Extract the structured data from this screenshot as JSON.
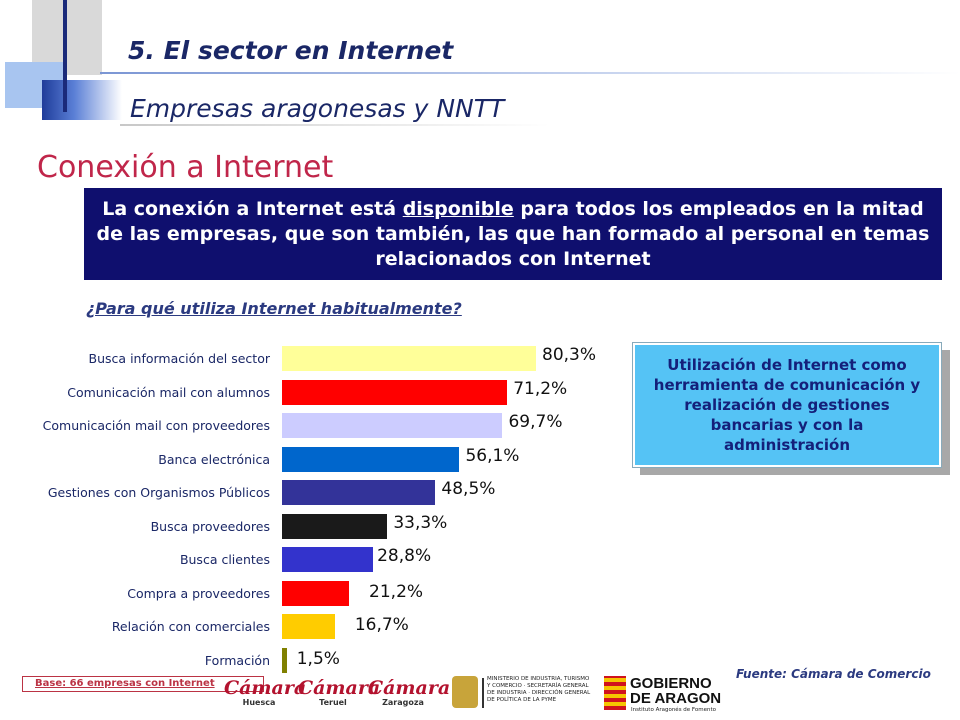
{
  "header": {
    "section_title": "5. El sector en Internet",
    "section_subtitle": "Empresas aragonesas y NNTT"
  },
  "page_title": "Conexión a Internet",
  "banner": {
    "text_before": "La conexión a Internet está ",
    "underlined": "disponible",
    "text_after": " para todos los empleados en la mitad de las empresas, que son también, las que han formado al personal en temas relacionados con Internet"
  },
  "question": "¿Para qué utiliza Internet habitualmente?",
  "chart_data": {
    "type": "bar",
    "orientation": "horizontal",
    "categories": [
      "Busca información del sector",
      "Comunicación mail con alumnos",
      "Comunicación mail con proveedores",
      "Banca electrónica",
      "Gestiones con Organismos Públicos",
      "Busca proveedores",
      "Busca clientes",
      "Compra a proveedores",
      "Relación con comerciales",
      "Formación"
    ],
    "values": [
      80.3,
      71.2,
      69.7,
      56.1,
      48.5,
      33.3,
      28.8,
      21.2,
      16.7,
      1.5
    ],
    "value_labels": [
      "80,3%",
      "71,2%",
      "69,7%",
      "56,1%",
      "48,5%",
      "33,3%",
      "28,8%",
      "21,2%",
      "16,7%",
      "1,5%"
    ],
    "colors": [
      "#ffff99",
      "#ff0000",
      "#ccccff",
      "#0066cc",
      "#333399",
      "#1a1a1a",
      "#3333cc",
      "#ff0000",
      "#ffcc00",
      "#808000"
    ],
    "xlim": [
      0,
      100
    ],
    "grid": false
  },
  "callout": "Utilización de Internet como herramienta de comunicación y realización de gestiones bancarias y con la administración",
  "source": "Fuente: Cámara de Comercio",
  "base_note": "Base: 66 empresas con Internet",
  "logos": {
    "camara_huesca": {
      "name": "Cámara",
      "city": "Huesca"
    },
    "camara_teruel": {
      "name": "Cámara",
      "city": "Teruel"
    },
    "camara_zaragoza": {
      "name": "Cámara",
      "city": "Zaragoza"
    },
    "ministry": "MINISTERIO DE INDUSTRIA, TURISMO Y COMERCIO · SECRETARÍA GENERAL DE INDUSTRIA · DIRECCIÓN GENERAL DE POLÍTICA DE LA PYME",
    "gobierno_line1": "GOBIERNO",
    "gobierno_line2": "DE ARAGON",
    "gobierno_sub": "Instituto Aragonés de Fomento"
  }
}
